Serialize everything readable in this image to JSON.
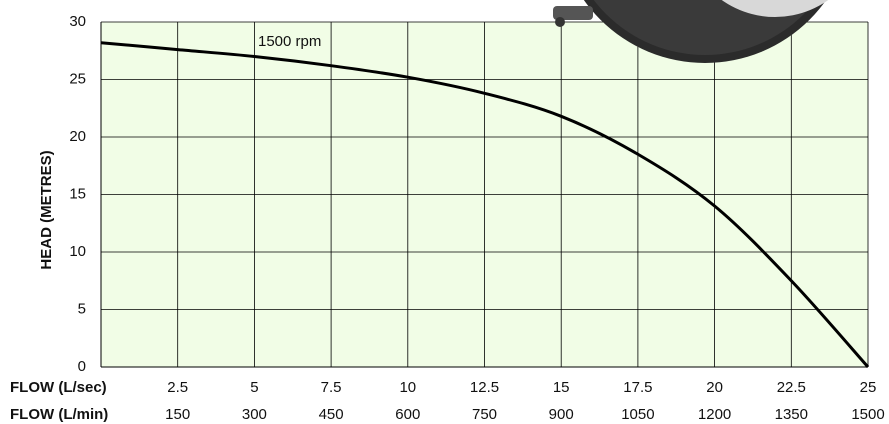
{
  "chart_data": {
    "type": "line",
    "x_label": "FLOW (L/sec)",
    "x2_label": "FLOW (L/min)",
    "y_label": "HEAD (METRES)",
    "x": [
      0,
      2.5,
      5,
      7.5,
      10,
      12.5,
      15,
      17.5,
      20,
      22.5,
      25
    ],
    "series": [
      {
        "name": "1500 rpm",
        "color": "#000000",
        "values": [
          28.2,
          27.6,
          27.0,
          26.2,
          25.2,
          23.8,
          21.8,
          18.5,
          14.0,
          7.5,
          0
        ]
      }
    ],
    "xlim": [
      0,
      25
    ],
    "xticks": [
      2.5,
      5,
      7.5,
      10,
      12.5,
      15,
      17.5,
      20,
      22.5,
      25
    ],
    "x2lim": [
      0,
      1500
    ],
    "x2ticks": [
      150,
      300,
      450,
      600,
      750,
      900,
      1050,
      1200,
      1350,
      1500
    ],
    "ylim": [
      0,
      30
    ],
    "yticks": [
      0,
      5,
      10,
      15,
      20,
      25,
      30
    ],
    "grid": true,
    "background": "#f1fde6"
  }
}
